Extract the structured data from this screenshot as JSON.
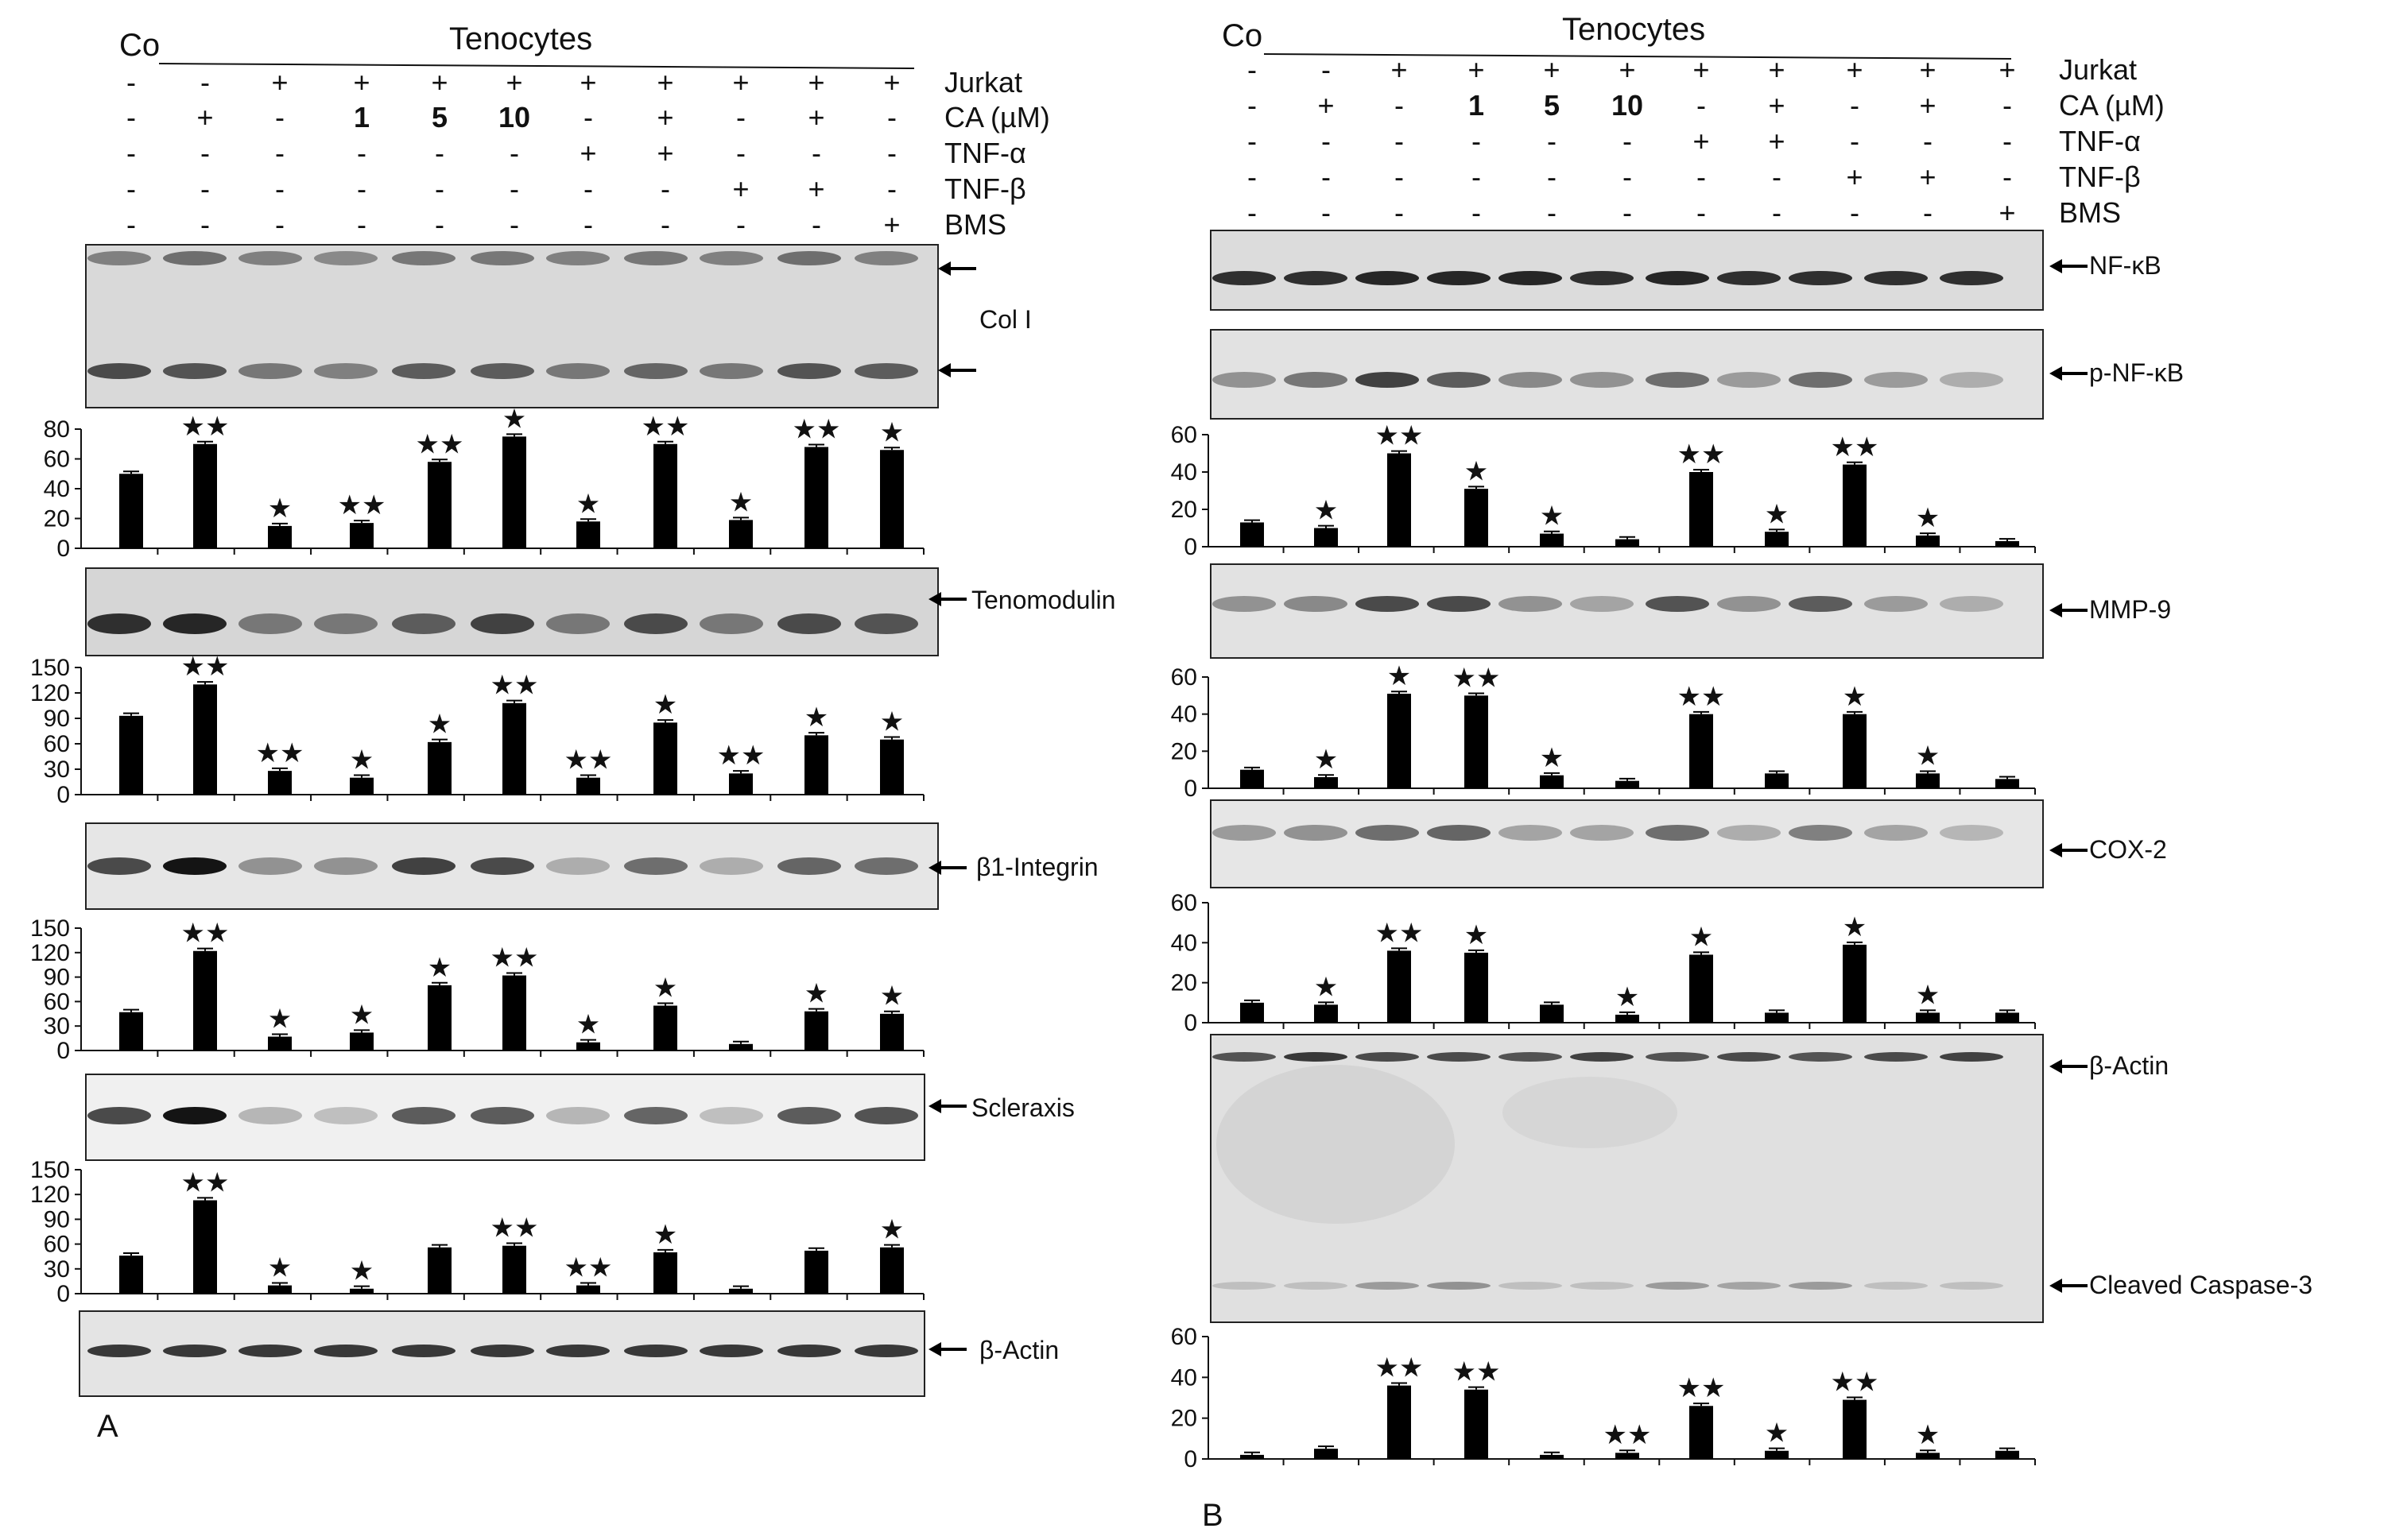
{
  "panel_a": {
    "letter": "A",
    "co_label": "Co",
    "group_label": "Tenocytes",
    "conditions": [
      {
        "name": "Jurkat",
        "values": [
          "-",
          "-",
          "+",
          "+",
          "+",
          "+",
          "+",
          "+",
          "+",
          "+",
          "+"
        ]
      },
      {
        "name": "CA (µM)",
        "values": [
          "-",
          "+",
          "-",
          "1",
          "5",
          "10",
          "-",
          "+",
          "-",
          "+",
          "-"
        ]
      },
      {
        "name": "TNF-α",
        "values": [
          "-",
          "-",
          "-",
          "-",
          "-",
          "-",
          "+",
          "+",
          "-",
          "-",
          "-"
        ]
      },
      {
        "name": "TNF-β",
        "values": [
          "-",
          "-",
          "-",
          "-",
          "-",
          "-",
          "-",
          "-",
          "+",
          "+",
          "-"
        ]
      },
      {
        "name": "BMS",
        "values": [
          "-",
          "-",
          "-",
          "-",
          "-",
          "-",
          "-",
          "-",
          "-",
          "-",
          "+"
        ]
      }
    ],
    "blots": {
      "coll": "Col I",
      "tenomodulin": "Tenomodulin",
      "integrin": "β1-Integrin",
      "scleraxis": "Scleraxis",
      "actin": "β-Actin"
    }
  },
  "panel_b": {
    "letter": "B",
    "co_label": "Co",
    "group_label": "Tenocytes",
    "conditions": [
      {
        "name": "Jurkat",
        "values": [
          "-",
          "-",
          "+",
          "+",
          "+",
          "+",
          "+",
          "+",
          "+",
          "+",
          "+"
        ]
      },
      {
        "name": "CA (µM)",
        "values": [
          "-",
          "+",
          "-",
          "1",
          "5",
          "10",
          "-",
          "+",
          "-",
          "+",
          "-"
        ]
      },
      {
        "name": "TNF-α",
        "values": [
          "-",
          "-",
          "-",
          "-",
          "-",
          "-",
          "+",
          "+",
          "-",
          "-",
          "-"
        ]
      },
      {
        "name": "TNF-β",
        "values": [
          "-",
          "-",
          "-",
          "-",
          "-",
          "-",
          "-",
          "-",
          "+",
          "+",
          "-"
        ]
      },
      {
        "name": "BMS",
        "values": [
          "-",
          "-",
          "-",
          "-",
          "-",
          "-",
          "-",
          "-",
          "-",
          "-",
          "+"
        ]
      }
    ],
    "blots": {
      "nfkb": "NF-κB",
      "pnfkb": "p-NF-κB",
      "mmp9": "MMP-9",
      "cox2": "COX-2",
      "actin": "β-Actin",
      "caspase": "Cleaved Caspase-3"
    }
  },
  "chart_data": [
    {
      "id": "a_coll",
      "type": "bar",
      "target": "Col I",
      "ylim": [
        0,
        80
      ],
      "yticks": [
        0,
        20,
        40,
        60,
        80
      ],
      "values": [
        50,
        70,
        15,
        17,
        58,
        75,
        18,
        70,
        19,
        68,
        66
      ],
      "sig": [
        "",
        "**",
        "*",
        "**",
        "**",
        "*",
        "*",
        "**",
        "*",
        "**",
        "*"
      ]
    },
    {
      "id": "a_teno",
      "type": "bar",
      "target": "Tenomodulin",
      "ylim": [
        0,
        150
      ],
      "yticks": [
        0,
        30,
        60,
        90,
        120,
        150
      ],
      "values": [
        93,
        130,
        28,
        20,
        62,
        108,
        20,
        85,
        25,
        70,
        65
      ],
      "sig": [
        "",
        "**",
        "**",
        "*",
        "*",
        "**",
        "**",
        "*",
        "**",
        "*",
        "*"
      ]
    },
    {
      "id": "a_integ",
      "type": "bar",
      "target": "β1-Integrin",
      "ylim": [
        0,
        150
      ],
      "yticks": [
        0,
        30,
        60,
        90,
        120,
        150
      ],
      "values": [
        47,
        122,
        17,
        22,
        80,
        92,
        10,
        55,
        8,
        48,
        45
      ],
      "sig": [
        "",
        "**",
        "*",
        "*",
        "*",
        "**",
        "*",
        "*",
        "",
        "*",
        "*"
      ]
    },
    {
      "id": "a_scx",
      "type": "bar",
      "target": "Scleraxis",
      "ylim": [
        0,
        150
      ],
      "yticks": [
        0,
        30,
        60,
        90,
        120,
        150
      ],
      "values": [
        46,
        113,
        10,
        6,
        56,
        58,
        10,
        50,
        6,
        52,
        56
      ],
      "sig": [
        "",
        "**",
        "*",
        "*",
        "",
        "**",
        "**",
        "*",
        "",
        "",
        "*"
      ]
    },
    {
      "id": "b_pnfkb",
      "type": "bar",
      "target": "p-NF-κB",
      "ylim": [
        0,
        60
      ],
      "yticks": [
        0,
        20,
        40,
        60
      ],
      "values": [
        13,
        10,
        50,
        31,
        7,
        4,
        40,
        8,
        44,
        6,
        3
      ],
      "sig": [
        "",
        "*",
        "**",
        "*",
        "*",
        "",
        "**",
        "*",
        "**",
        "*",
        ""
      ]
    },
    {
      "id": "b_mmp9",
      "type": "bar",
      "target": "MMP-9",
      "ylim": [
        0,
        60
      ],
      "yticks": [
        0,
        20,
        40,
        60
      ],
      "values": [
        10,
        6,
        51,
        50,
        7,
        4,
        40,
        8,
        40,
        8,
        5
      ],
      "sig": [
        "",
        "*",
        "*",
        "**",
        "*",
        "",
        "**",
        "",
        "*",
        "*",
        ""
      ]
    },
    {
      "id": "b_cox2",
      "type": "bar",
      "target": "COX-2",
      "ylim": [
        0,
        60
      ],
      "yticks": [
        0,
        20,
        40,
        60
      ],
      "values": [
        10,
        9,
        36,
        35,
        9,
        4,
        34,
        5,
        39,
        5,
        5
      ],
      "sig": [
        "",
        "*",
        "**",
        "*",
        "",
        "*",
        "*",
        "",
        "*",
        "*",
        ""
      ]
    },
    {
      "id": "b_casp",
      "type": "bar",
      "target": "Cleaved Caspase-3",
      "ylim": [
        0,
        60
      ],
      "yticks": [
        0,
        20,
        40,
        60
      ],
      "values": [
        2,
        5,
        36,
        34,
        2,
        3,
        26,
        4,
        29,
        3,
        4
      ],
      "sig": [
        "",
        "",
        "**",
        "**",
        "",
        "**",
        "**",
        "*",
        "**",
        "*",
        ""
      ]
    }
  ]
}
